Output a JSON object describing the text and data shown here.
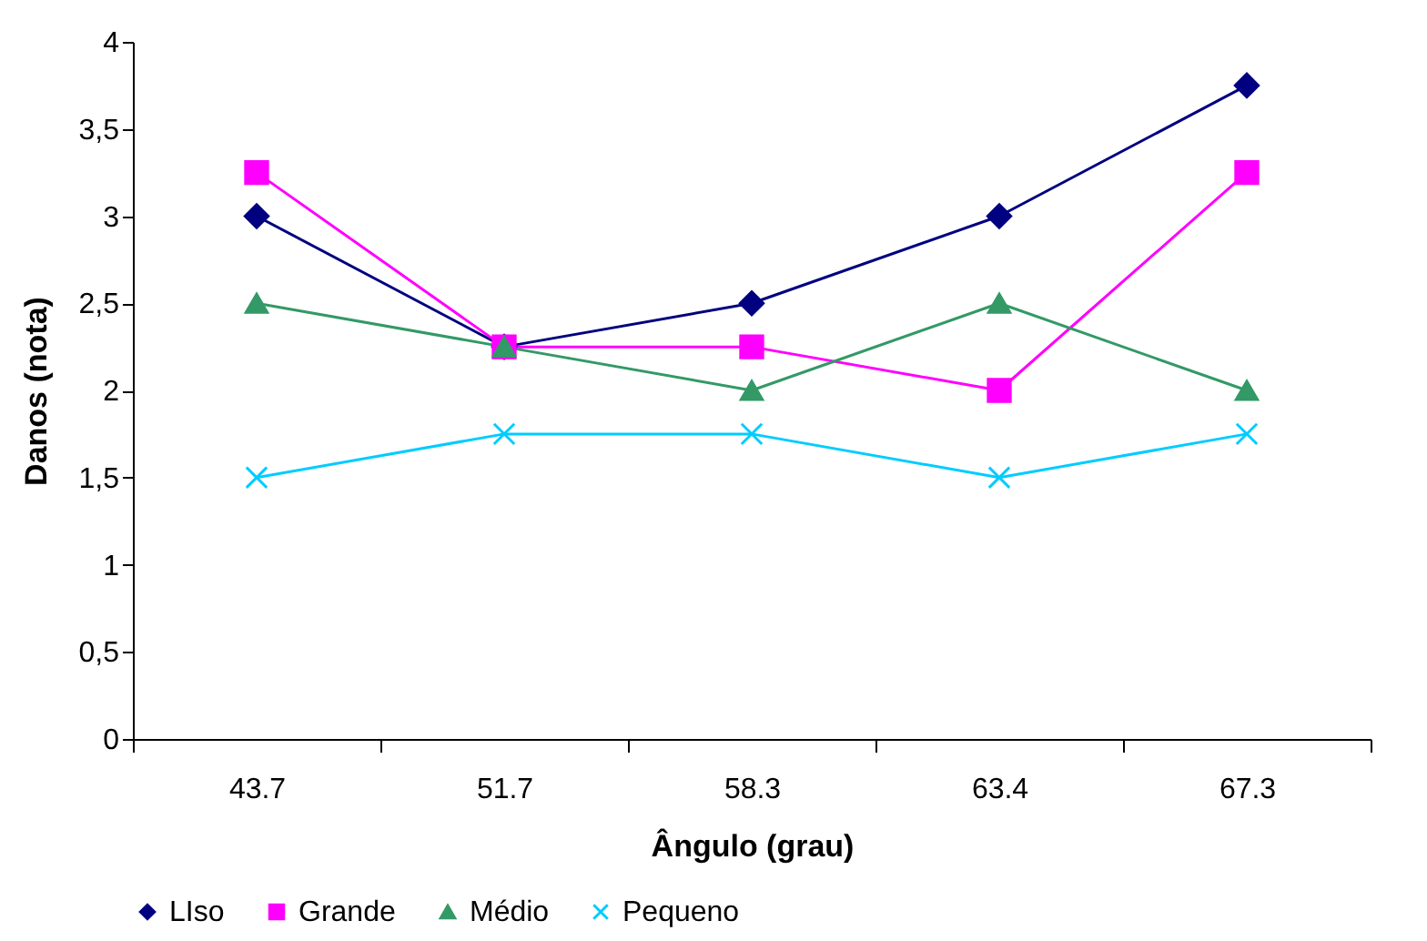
{
  "chart_data": {
    "type": "line",
    "xlabel": "Ângulo (grau)",
    "ylabel": "Danos (nota)",
    "categories": [
      "43.7",
      "51.7",
      "58.3",
      "63.4",
      "67.3"
    ],
    "series": [
      {
        "name": "LIso",
        "color": "#000080",
        "marker": "diamond",
        "values": [
          3,
          2.25,
          2.5,
          3,
          3.75
        ]
      },
      {
        "name": "Grande",
        "color": "#ff00ff",
        "marker": "square",
        "values": [
          3.25,
          2.25,
          2.25,
          2,
          3.25
        ]
      },
      {
        "name": "Médio",
        "color": "#339966",
        "marker": "triangle",
        "values": [
          2.5,
          2.25,
          2,
          2.5,
          2
        ]
      },
      {
        "name": "Pequeno",
        "color": "#00ccff",
        "marker": "cross",
        "values": [
          1.5,
          1.75,
          1.75,
          1.5,
          1.75
        ]
      }
    ],
    "ylim": [
      0,
      4
    ],
    "yticks": [
      0,
      {
        "value": 0.5,
        "label": "0,5"
      },
      1,
      {
        "value": 1.5,
        "label": "1,5"
      },
      2,
      {
        "value": 2.5,
        "label": "2,5"
      },
      3,
      {
        "value": 3.5,
        "label": "3,5"
      },
      4
    ],
    "grid": false,
    "legend": "bottom"
  }
}
